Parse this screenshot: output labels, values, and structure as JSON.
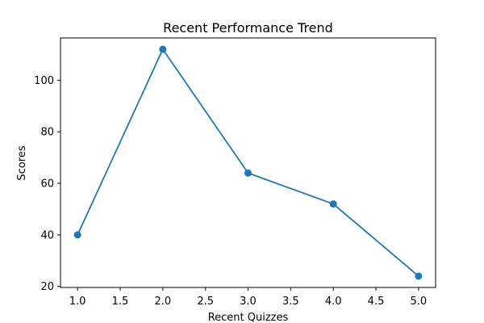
{
  "chart_data": {
    "type": "line",
    "title": "Recent Performance Trend",
    "xlabel": "Recent Quizzes",
    "ylabel": "Scores",
    "x": [
      1.0,
      2.0,
      3.0,
      4.0,
      5.0
    ],
    "series": [
      {
        "values": [
          40,
          112,
          64,
          52,
          24
        ],
        "color": "#1f77b4",
        "marker": "circle"
      }
    ],
    "xlim": [
      0.8,
      5.2
    ],
    "ylim": [
      19.6,
      116.4
    ],
    "xticks": [
      1.0,
      1.5,
      2.0,
      2.5,
      3.0,
      3.5,
      4.0,
      4.5,
      5.0
    ],
    "xtick_labels": [
      "1.0",
      "1.5",
      "2.0",
      "2.5",
      "3.0",
      "3.5",
      "4.0",
      "4.5",
      "5.0"
    ],
    "yticks": [
      20,
      40,
      60,
      80,
      100
    ],
    "ytick_labels": [
      "20",
      "40",
      "60",
      "80",
      "100"
    ],
    "grid": false,
    "legend": "none"
  }
}
